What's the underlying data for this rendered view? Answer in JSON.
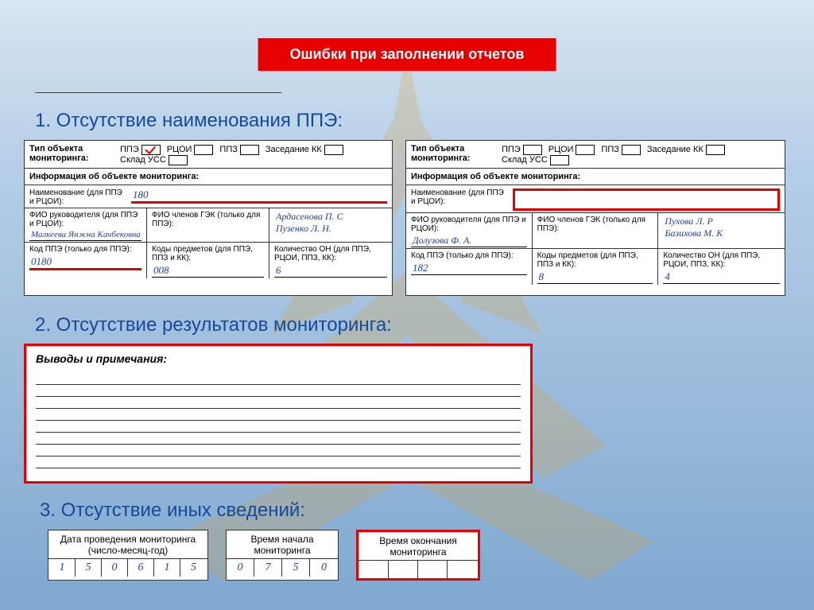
{
  "banner": "Ошибки при заполнении отчетов",
  "headings": {
    "h1": "1. Отсутствие наименования ППЭ:",
    "h2": "2. Отсутствие результатов мониторинга:",
    "h3": "3. Отсутствие иных сведений:"
  },
  "typeRow": {
    "label": "Тип объекта мониторинга:",
    "opts": {
      "ppe": "ППЭ",
      "rcoi": "РЦОИ",
      "ppz": "ППЗ",
      "kk": "Заседание КК",
      "uss": "Склад УСС"
    }
  },
  "infoTitle": "Информация об объекте мониторинга:",
  "labels": {
    "naming": "Наименование (для ППЭ и РЦОИ):",
    "fio_ruk": "ФИО руководителя (для ППЭ и РЦОИ):",
    "fio_gek": "ФИО членов ГЭК (только для ППЭ):",
    "kod_ppe": "Код ППЭ (только для ППЭ):",
    "kody_pred": "Коды предметов (для ППЭ, ППЗ и КК):",
    "kvo": "Количество ОН (для ППЭ, РЦОИ, ППЗ, КК):"
  },
  "left": {
    "ppe_checked": true,
    "naming": "180",
    "fio_ruk": "Малкеева Янжна Качбековна",
    "fio_gek": "Ардасенова П. С\nПузенко Л. Н.",
    "kod_ppe": "0180",
    "kody_pred": "008",
    "kvo": "6"
  },
  "right": {
    "ppe_checked": false,
    "naming": "",
    "fio_ruk": "Долузова Ф. А.",
    "fio_gek": "Пухова Л. Р\nБазихова М. К",
    "kod_ppe": "182",
    "kody_pred": "8",
    "kvo": "4"
  },
  "mid": {
    "title": "Выводы и примечания:",
    "lines": 8
  },
  "bottom": {
    "date": {
      "title": "Дата проведения мониторинга (число-месяц-год)",
      "cells": [
        "1",
        "5",
        "0",
        "6",
        "1",
        "5"
      ]
    },
    "start": {
      "title": "Время начала мониторинга",
      "cells": [
        "0",
        "7",
        "5",
        "0"
      ]
    },
    "end": {
      "title": "Время окончания мониторинга",
      "cells": [
        "",
        "",
        "",
        ""
      ]
    }
  },
  "colors": {
    "accent_red": "#e60000",
    "heading_blue": "#154a9a",
    "handwriting": "#2040a0",
    "bg_top": "#d8e5f2",
    "bg_bottom": "#7fa8d0",
    "emblem": "#d9a23a"
  }
}
